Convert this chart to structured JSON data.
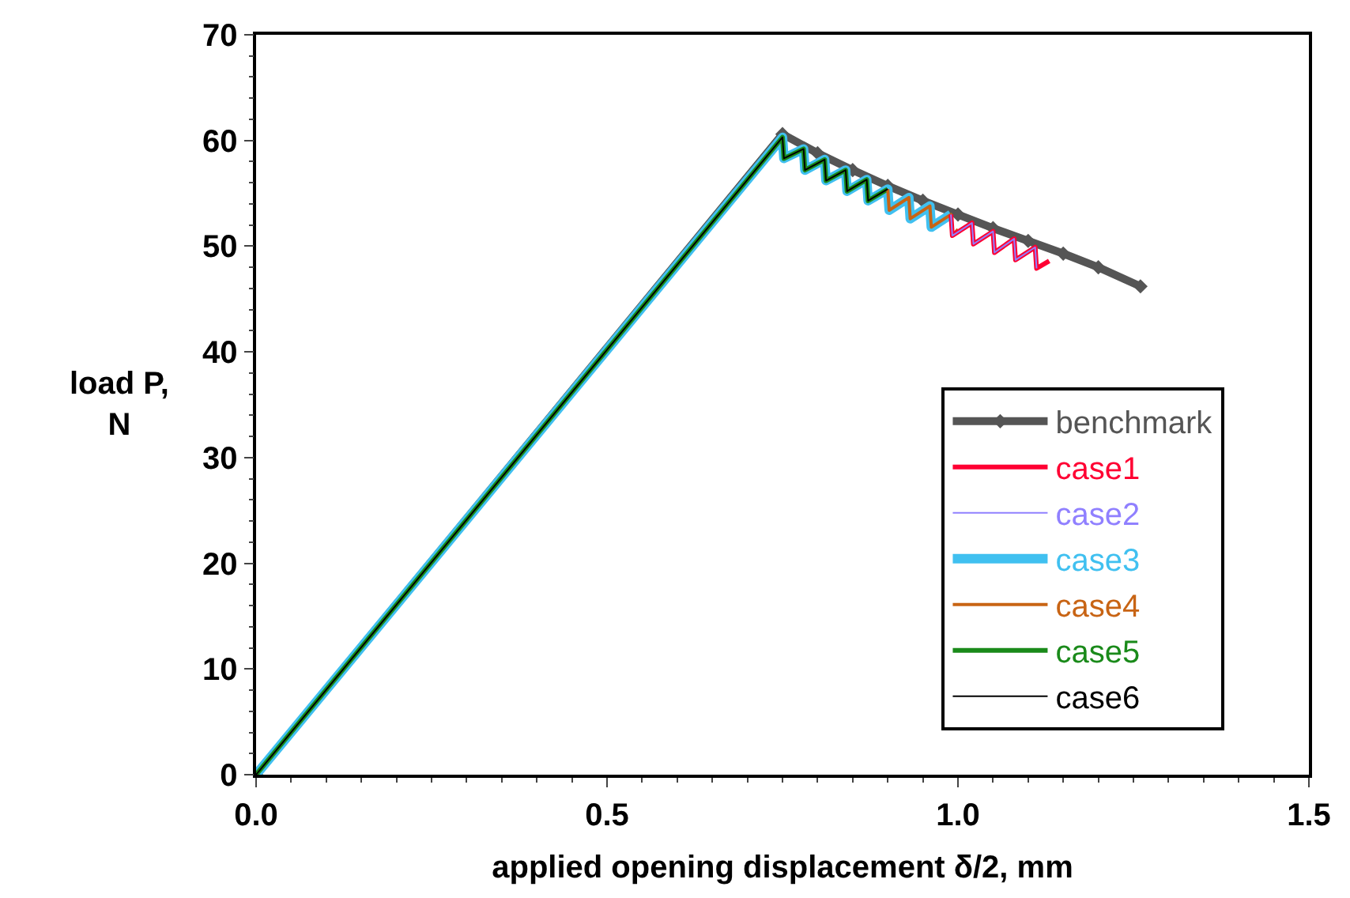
{
  "chart_data": {
    "type": "line",
    "xlabel": "applied opening displacement δ/2, mm",
    "ylabel": "load P,\nN",
    "xlim": [
      0,
      1.5
    ],
    "xticks": [
      {
        "value": 0,
        "label": "0.0"
      },
      0.5,
      {
        "value": 1,
        "label": "1.0"
      },
      1.5
    ],
    "ylim": [
      0,
      70
    ],
    "yticks": [
      0,
      10,
      20,
      30,
      40,
      50,
      60,
      70
    ],
    "legend": "bottom right",
    "line_style": "solid",
    "series": [
      {
        "name": "benchmark",
        "color": "#555555",
        "marker": "diamond",
        "x": [
          0,
          0.75,
          0.8,
          0.85,
          0.9,
          0.95,
          1.0,
          1.05,
          1.1,
          1.15,
          1.2,
          1.26
        ],
        "values": [
          0,
          60.6,
          58.8,
          57.2,
          55.7,
          54.3,
          53.0,
          51.7,
          50.5,
          49.3,
          48.0,
          46.2
        ]
      },
      {
        "name": "case1",
        "color": "#ff0033",
        "x": [
          0.99,
          0.992,
          1.02,
          1.022,
          1.05,
          1.052,
          1.08,
          1.082,
          1.11,
          1.112,
          1.13
        ],
        "values": [
          53.0,
          51.0,
          52.2,
          50.2,
          51.4,
          49.4,
          50.7,
          48.7,
          49.9,
          47.9,
          48.6
        ]
      },
      {
        "name": "case2",
        "color": "#9080ff",
        "x": [
          0.99,
          0.992,
          1.02,
          1.022,
          1.05,
          1.052,
          1.08,
          1.082,
          1.11,
          1.112
        ],
        "values": [
          53.0,
          51.0,
          52.2,
          50.2,
          51.4,
          49.4,
          50.7,
          48.7,
          49.9,
          47.9
        ]
      },
      {
        "name": "case3",
        "color": "#40c0f0",
        "x": [
          0,
          0.75,
          0.752,
          0.78,
          0.782,
          0.81,
          0.812,
          0.84,
          0.842,
          0.87,
          0.872,
          0.9,
          0.902,
          0.93,
          0.932,
          0.96,
          0.962,
          0.99
        ],
        "values": [
          0,
          60.3,
          58.3,
          59.2,
          57.2,
          58.2,
          56.2,
          57.2,
          55.2,
          56.3,
          54.3,
          55.4,
          53.4,
          54.6,
          52.6,
          53.8,
          51.8,
          53.0
        ]
      },
      {
        "name": "case4",
        "color": "#c86414",
        "x": [
          0.9,
          0.902,
          0.93,
          0.932,
          0.96,
          0.962,
          0.99,
          0.992,
          1.0
        ],
        "values": [
          55.4,
          53.4,
          54.6,
          52.6,
          53.8,
          51.8,
          53.0,
          51.0,
          51.6
        ]
      },
      {
        "name": "case5",
        "color": "#1a8a1a",
        "x": [
          0,
          0.75,
          0.752,
          0.78,
          0.782,
          0.81,
          0.812,
          0.84,
          0.842,
          0.87,
          0.872,
          0.9
        ],
        "values": [
          0,
          60.3,
          58.3,
          59.2,
          57.2,
          58.2,
          56.2,
          57.2,
          55.2,
          56.3,
          54.3,
          55.4
        ]
      },
      {
        "name": "case6",
        "color": "#000000",
        "x": [
          0,
          0.75,
          0.752,
          0.78,
          0.782,
          0.81,
          0.812,
          0.84,
          0.842,
          0.87,
          0.872,
          0.9
        ],
        "values": [
          0,
          60.3,
          58.3,
          59.2,
          57.2,
          58.2,
          56.2,
          57.2,
          55.2,
          56.3,
          54.3,
          55.4
        ]
      }
    ]
  }
}
